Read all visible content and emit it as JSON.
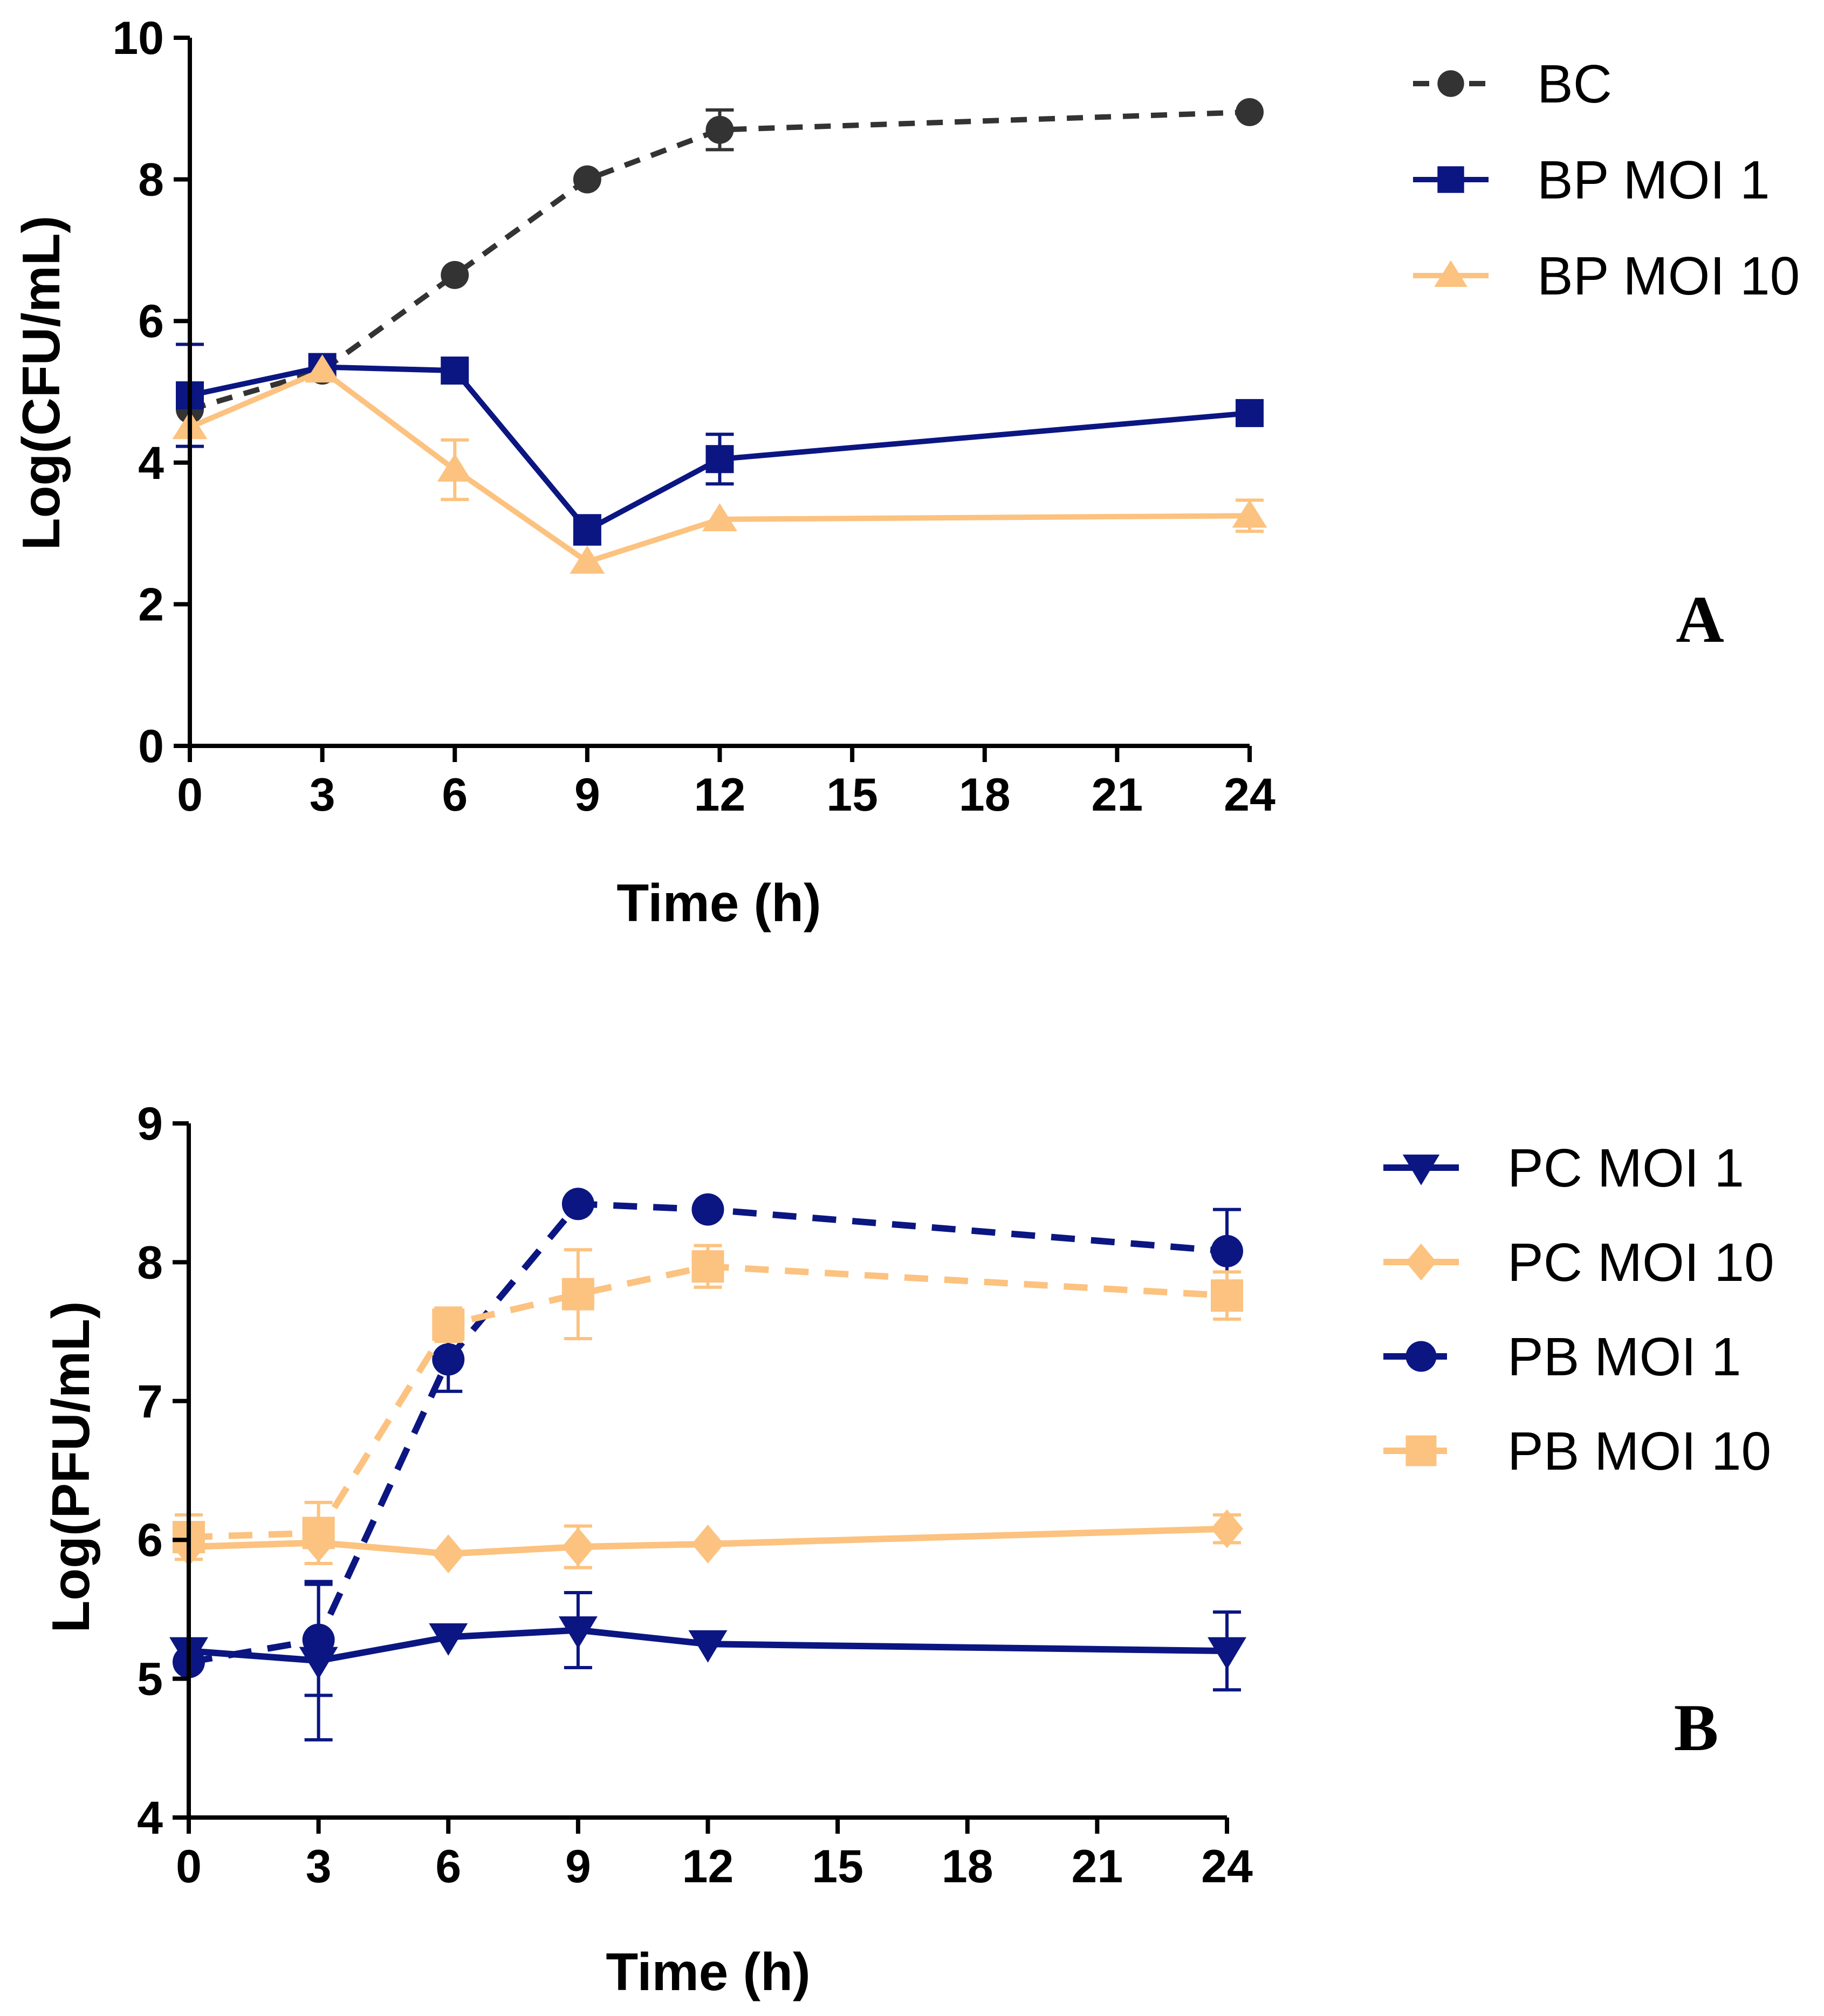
{
  "chart_data": [
    {
      "type": "line",
      "panel_label": "A",
      "xlabel": "Time (h)",
      "ylabel": "Log(CFU/mL)",
      "xlim": [
        0,
        24
      ],
      "ylim": [
        0,
        10
      ],
      "xticks": [
        0,
        3,
        6,
        9,
        12,
        15,
        18,
        21,
        24
      ],
      "yticks": [
        0,
        2,
        4,
        6,
        8,
        10
      ],
      "grid": false,
      "legend_position": "right",
      "series": [
        {
          "name": "BC",
          "color": "#333333",
          "dashed": true,
          "marker": "circle",
          "x": [
            0,
            3,
            6,
            9,
            12,
            24
          ],
          "values": [
            4.75,
            5.3,
            6.65,
            8.0,
            8.7,
            8.95
          ],
          "err": [
            0,
            0,
            0,
            0,
            0.28,
            0
          ]
        },
        {
          "name": "BP MOI 1",
          "color": "#0b1682",
          "dashed": false,
          "marker": "square",
          "x": [
            0,
            3,
            6,
            9,
            12,
            24
          ],
          "values": [
            4.95,
            5.35,
            5.3,
            3.05,
            4.05,
            4.7
          ],
          "err": [
            0.72,
            0,
            0,
            0.2,
            0.35,
            0
          ]
        },
        {
          "name": "BP MOI 10",
          "color": "#fcc27f",
          "dashed": false,
          "marker": "triangle",
          "x": [
            0,
            3,
            6,
            9,
            12,
            24
          ],
          "values": [
            4.5,
            5.3,
            3.9,
            2.6,
            3.2,
            3.25
          ],
          "err": [
            0,
            0,
            0.42,
            0,
            0,
            0.22
          ]
        }
      ]
    },
    {
      "type": "line",
      "panel_label": "B",
      "xlabel": "Time (h)",
      "ylabel": "Log(PFU/mL)",
      "xlim": [
        0,
        24
      ],
      "ylim": [
        4,
        9
      ],
      "xticks": [
        0,
        3,
        6,
        9,
        12,
        15,
        18,
        21,
        24
      ],
      "yticks": [
        4,
        5,
        6,
        7,
        8,
        9
      ],
      "grid": false,
      "legend_position": "right",
      "series": [
        {
          "name": "PC MOI 1",
          "color": "#0b1682",
          "dashed": false,
          "marker": "triangle-down",
          "x": [
            0,
            3,
            6,
            9,
            12,
            24
          ],
          "values": [
            5.2,
            5.13,
            5.3,
            5.35,
            5.25,
            5.2
          ],
          "err": [
            0,
            0.57,
            0,
            0.27,
            0,
            0.28
          ]
        },
        {
          "name": "PC MOI 10",
          "color": "#fcc27f",
          "dashed": false,
          "marker": "diamond",
          "x": [
            0,
            3,
            6,
            9,
            12,
            24
          ],
          "values": [
            5.95,
            5.98,
            5.9,
            5.95,
            5.97,
            6.08
          ],
          "err": [
            0,
            0,
            0,
            0.15,
            0,
            0.1
          ]
        },
        {
          "name": "PB MOI 1",
          "color": "#0b1682",
          "dashed": true,
          "marker": "circle",
          "x": [
            0,
            3,
            6,
            9,
            12,
            24
          ],
          "values": [
            5.12,
            5.28,
            7.3,
            8.42,
            8.38,
            8.08
          ],
          "err": [
            0,
            0.4,
            0.23,
            0,
            0,
            0.3
          ]
        },
        {
          "name": "PB MOI 10",
          "color": "#fcc27f",
          "dashed": true,
          "marker": "square",
          "x": [
            0,
            3,
            6,
            9,
            12,
            24
          ],
          "values": [
            6.02,
            6.05,
            7.55,
            7.77,
            7.97,
            7.76
          ],
          "err": [
            0.16,
            0.22,
            0.12,
            0.32,
            0.15,
            0.17
          ]
        }
      ]
    }
  ]
}
